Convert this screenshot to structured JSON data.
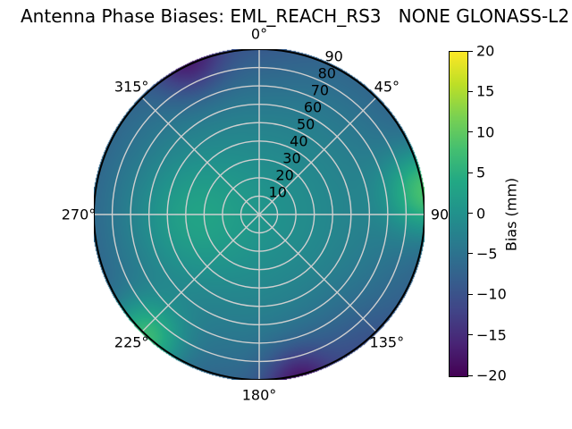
{
  "title": "Antenna Phase Biases: EML_REACH_RS3   NONE GLONASS-L2",
  "chart_data": {
    "type": "heatmap",
    "projection": "polar",
    "title": "Antenna Phase Biases: EML_REACH_RS3   NONE GLONASS-L2",
    "theta_zero_location": "top",
    "theta_direction": "clockwise",
    "angle_ticks": [
      {
        "deg": 0,
        "label": "0°"
      },
      {
        "deg": 45,
        "label": "45°"
      },
      {
        "deg": 90,
        "label": "90"
      },
      {
        "deg": 135,
        "label": "135°"
      },
      {
        "deg": 180,
        "label": "180°"
      },
      {
        "deg": 225,
        "label": "225°"
      },
      {
        "deg": 270,
        "label": "270°"
      },
      {
        "deg": 315,
        "label": "315°"
      }
    ],
    "radial_ticks": [
      10,
      20,
      30,
      40,
      50,
      60,
      70,
      80,
      90
    ],
    "radial_max": 90,
    "radial_label_angle_deg": 22.5,
    "grid": true,
    "colorbar": {
      "label": "Bias (mm)",
      "min": -20,
      "max": 20,
      "colormap": "viridis",
      "tick_values": [
        20,
        15,
        10,
        5,
        0,
        -5,
        -10,
        -15,
        -20
      ],
      "tick_labels": [
        "20",
        "15",
        "10",
        "5",
        "0",
        "−5",
        "−10",
        "−15",
        "−20"
      ]
    },
    "viridis_stops": [
      [
        0.0,
        [
          68,
          1,
          84
        ]
      ],
      [
        0.1,
        [
          72,
          36,
          117
        ]
      ],
      [
        0.2,
        [
          65,
          68,
          135
        ]
      ],
      [
        0.3,
        [
          53,
          95,
          141
        ]
      ],
      [
        0.4,
        [
          42,
          120,
          142
        ]
      ],
      [
        0.5,
        [
          33,
          145,
          140
        ]
      ],
      [
        0.6,
        [
          34,
          168,
          132
        ]
      ],
      [
        0.7,
        [
          68,
          191,
          112
        ]
      ],
      [
        0.8,
        [
          122,
          209,
          81
        ]
      ],
      [
        0.9,
        [
          189,
          223,
          38
        ]
      ],
      [
        1.0,
        [
          253,
          231,
          37
        ]
      ]
    ],
    "field_model": {
      "units": "mm bias; az degrees clockwise from north; r in radial units 0-90",
      "base": {
        "center": -0.3,
        "rim_delta": -6.3,
        "power": 1.8
      },
      "blobs": [
        {
          "az": 335,
          "r": 93,
          "sigma": 14,
          "amp": -10,
          "note": "dark purple patch NNW rim"
        },
        {
          "az": 167,
          "r": 94,
          "sigma": 13,
          "amp": -10,
          "note": "dark purple patch SSE rim"
        },
        {
          "az": 82,
          "r": 96,
          "sigma": 17,
          "amp": 16,
          "note": "bright green band E rim"
        },
        {
          "az": 223,
          "r": 94,
          "sigma": 15,
          "amp": 14,
          "note": "green patch SW rim"
        },
        {
          "az": 268,
          "r": 38,
          "sigma": 23,
          "amp": 4.5,
          "note": "green mid-radius patch W of center"
        },
        {
          "az": 0,
          "r": 96,
          "sigma": 22,
          "amp": -2,
          "note": "slightly darker N rim"
        },
        {
          "az": 145,
          "r": 95,
          "sigma": 24,
          "amp": -3.5,
          "note": "darker indigo SE rim"
        }
      ]
    },
    "grid_color": "#cfcfcf",
    "outline_color": "#000000"
  }
}
